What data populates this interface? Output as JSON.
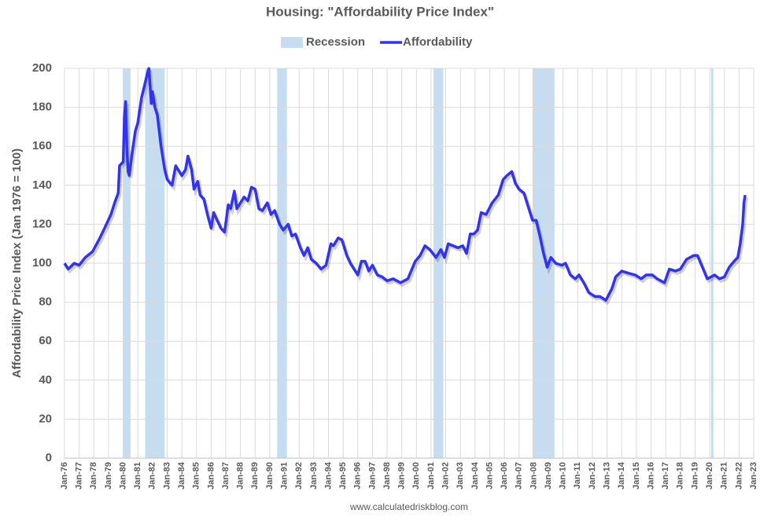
{
  "chart_data": {
    "type": "line",
    "title": "Housing: \"Affordability Price Index\"",
    "y_label": "Affordability Price Index (Jan 1976 = 100)",
    "source": "www.calculatedriskblog.com",
    "grid": true,
    "xlim": [
      "1976-01",
      "2023-01"
    ],
    "ylim": [
      0,
      200
    ],
    "yticks": [
      0,
      20,
      40,
      60,
      80,
      100,
      120,
      140,
      160,
      180,
      200
    ],
    "xticks": [
      {
        "value": "1976-01",
        "label": "Jan-76"
      },
      {
        "value": "1977-01",
        "label": "Jan-77"
      },
      {
        "value": "1978-01",
        "label": "Jan-78"
      },
      {
        "value": "1979-01",
        "label": "Jan-79"
      },
      {
        "value": "1980-01",
        "label": "Jan-80"
      },
      {
        "value": "1981-01",
        "label": "Jan-81"
      },
      {
        "value": "1982-01",
        "label": "Jan-82"
      },
      {
        "value": "1983-01",
        "label": "Jan-83"
      },
      {
        "value": "1984-01",
        "label": "Jan-84"
      },
      {
        "value": "1985-01",
        "label": "Jan-85"
      },
      {
        "value": "1986-01",
        "label": "Jan-86"
      },
      {
        "value": "1987-01",
        "label": "Jan-87"
      },
      {
        "value": "1988-01",
        "label": "Jan-88"
      },
      {
        "value": "1989-01",
        "label": "Jan-89"
      },
      {
        "value": "1990-01",
        "label": "Jan-90"
      },
      {
        "value": "1991-01",
        "label": "Jan-91"
      },
      {
        "value": "1992-01",
        "label": "Jan-92"
      },
      {
        "value": "1993-01",
        "label": "Jan-93"
      },
      {
        "value": "1994-01",
        "label": "Jan-94"
      },
      {
        "value": "1995-01",
        "label": "Jan-95"
      },
      {
        "value": "1996-01",
        "label": "Jan-96"
      },
      {
        "value": "1997-01",
        "label": "Jan-97"
      },
      {
        "value": "1998-01",
        "label": "Jan-98"
      },
      {
        "value": "1999-01",
        "label": "Jan-99"
      },
      {
        "value": "2000-01",
        "label": "Jan-00"
      },
      {
        "value": "2001-01",
        "label": "Jan-01"
      },
      {
        "value": "2002-01",
        "label": "Jan-02"
      },
      {
        "value": "2003-01",
        "label": "Jan-03"
      },
      {
        "value": "2004-01",
        "label": "Jan-04"
      },
      {
        "value": "2005-01",
        "label": "Jan-05"
      },
      {
        "value": "2006-01",
        "label": "Jan-06"
      },
      {
        "value": "2007-01",
        "label": "Jan-07"
      },
      {
        "value": "2008-01",
        "label": "Jan-08"
      },
      {
        "value": "2009-01",
        "label": "Jan-09"
      },
      {
        "value": "2010-01",
        "label": "Jan-10"
      },
      {
        "value": "2011-01",
        "label": "Jan-11"
      },
      {
        "value": "2012-01",
        "label": "Jan-12"
      },
      {
        "value": "2013-01",
        "label": "Jan-13"
      },
      {
        "value": "2014-01",
        "label": "Jan-14"
      },
      {
        "value": "2015-01",
        "label": "Jan-15"
      },
      {
        "value": "2016-01",
        "label": "Jan-16"
      },
      {
        "value": "2017-01",
        "label": "Jan-17"
      },
      {
        "value": "2018-01",
        "label": "Jan-18"
      },
      {
        "value": "2019-01",
        "label": "Jan-19"
      },
      {
        "value": "2020-01",
        "label": "Jan-20"
      },
      {
        "value": "2021-01",
        "label": "Jan-21"
      },
      {
        "value": "2022-01",
        "label": "Jan-22"
      },
      {
        "value": "2023-01",
        "label": "Jan-23"
      }
    ],
    "recession": {
      "name": "Recession",
      "color": "#c6dcf1",
      "periods": [
        [
          "1980-01",
          "1980-07"
        ],
        [
          "1981-07",
          "1982-11"
        ],
        [
          "1990-07",
          "1991-03"
        ],
        [
          "2001-03",
          "2001-11"
        ],
        [
          "2007-12",
          "2009-06"
        ],
        [
          "2020-02",
          "2020-04"
        ]
      ]
    },
    "x": [
      "1976-01",
      "1976-04",
      "1976-09",
      "1977-01",
      "1977-06",
      "1977-12",
      "1978-06",
      "1978-12",
      "1979-03",
      "1979-06",
      "1979-09",
      "1979-10",
      "1980-01",
      "1980-02",
      "1980-03",
      "1980-04",
      "1980-05",
      "1980-06",
      "1980-08",
      "1980-11",
      "1981-01",
      "1981-04",
      "1981-06",
      "1981-09",
      "1981-10",
      "1981-12",
      "1982-01",
      "1982-03",
      "1982-05",
      "1982-08",
      "1982-11",
      "1983-01",
      "1983-05",
      "1983-08",
      "1984-01",
      "1984-04",
      "1984-06",
      "1984-09",
      "1984-11",
      "1985-02",
      "1985-04",
      "1985-07",
      "1985-10",
      "1986-01",
      "1986-03",
      "1986-06",
      "1986-09",
      "1986-12",
      "1987-03",
      "1987-05",
      "1987-08",
      "1987-10",
      "1988-01",
      "1988-04",
      "1988-07",
      "1988-10",
      "1989-01",
      "1989-04",
      "1989-07",
      "1989-11",
      "1990-02",
      "1990-05",
      "1990-09",
      "1990-12",
      "1991-04",
      "1991-07",
      "1991-10",
      "1992-02",
      "1992-05",
      "1992-08",
      "1992-11",
      "1993-03",
      "1993-07",
      "1993-11",
      "1994-03",
      "1994-05",
      "1994-09",
      "1994-12",
      "1995-04",
      "1995-07",
      "1995-10",
      "1996-01",
      "1996-04",
      "1996-07",
      "1996-10",
      "1997-01",
      "1997-05",
      "1997-09",
      "1998-01",
      "1998-06",
      "1998-12",
      "1999-06",
      "1999-12",
      "2000-04",
      "2000-08",
      "2000-12",
      "2001-05",
      "2001-09",
      "2001-12",
      "2002-03",
      "2002-07",
      "2002-11",
      "2003-03",
      "2003-06",
      "2003-09",
      "2003-12",
      "2004-03",
      "2004-06",
      "2004-10",
      "2005-03",
      "2005-08",
      "2005-12",
      "2006-03",
      "2006-07",
      "2006-10",
      "2007-01",
      "2007-05",
      "2007-09",
      "2007-12",
      "2008-03",
      "2008-06",
      "2008-09",
      "2008-12",
      "2009-03",
      "2009-07",
      "2009-12",
      "2010-03",
      "2010-07",
      "2010-11",
      "2011-02",
      "2011-06",
      "2011-10",
      "2012-03",
      "2012-07",
      "2012-12",
      "2013-05",
      "2013-08",
      "2014-01",
      "2014-06",
      "2014-12",
      "2015-05",
      "2015-09",
      "2016-02",
      "2016-06",
      "2016-12",
      "2017-04",
      "2017-09",
      "2018-01",
      "2018-06",
      "2018-12",
      "2019-03",
      "2019-07",
      "2019-11",
      "2020-02",
      "2020-05",
      "2020-09",
      "2021-01",
      "2021-05",
      "2021-09",
      "2021-12",
      "2022-02",
      "2022-04",
      "2022-05",
      "2022-06"
    ],
    "series": [
      {
        "name": "Affordability",
        "color": "#3333ee",
        "values": [
          100,
          97,
          100,
          99,
          103,
          106,
          113,
          121,
          125,
          131,
          136,
          150,
          152,
          175,
          183,
          160,
          147,
          145,
          155,
          168,
          172,
          185,
          190,
          198,
          200,
          182,
          188,
          180,
          176,
          160,
          148,
          143,
          140,
          150,
          145,
          148,
          155,
          148,
          138,
          142,
          135,
          133,
          125,
          118,
          126,
          122,
          118,
          116,
          130,
          128,
          137,
          128,
          131,
          134,
          132,
          139,
          138,
          128,
          127,
          131,
          125,
          127,
          120,
          117,
          120,
          114,
          115,
          108,
          104,
          108,
          102,
          100,
          97,
          99,
          110,
          109,
          113,
          112,
          104,
          100,
          97,
          94,
          101,
          101,
          96,
          99,
          94,
          93,
          91,
          92,
          90,
          92,
          101,
          104,
          109,
          107,
          103,
          107,
          103,
          110,
          109,
          108,
          109,
          105,
          115,
          115,
          117,
          126,
          125,
          131,
          135,
          143,
          145,
          147,
          141,
          138,
          136,
          128,
          122,
          122,
          114,
          105,
          98,
          103,
          100,
          99,
          100,
          94,
          92,
          94,
          90,
          85,
          83,
          83,
          81,
          87,
          93,
          96,
          95,
          94,
          92,
          94,
          94,
          92,
          90,
          97,
          96,
          97,
          102,
          104,
          104,
          98,
          92,
          93,
          94,
          92,
          93,
          98,
          101,
          103,
          110,
          120,
          131,
          135
        ]
      }
    ]
  }
}
